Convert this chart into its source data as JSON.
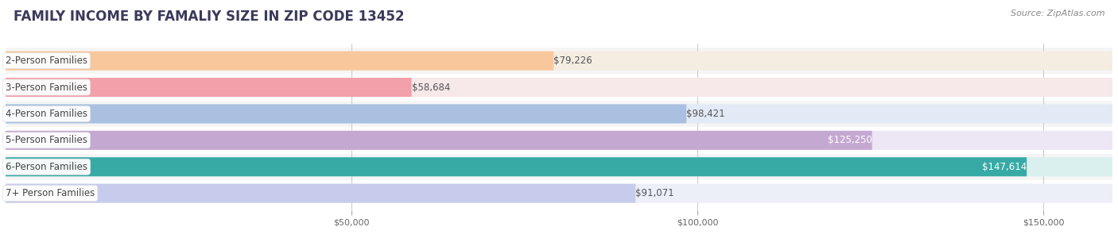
{
  "title": "FAMILY INCOME BY FAMALIY SIZE IN ZIP CODE 13452",
  "source": "Source: ZipAtlas.com",
  "categories": [
    "2-Person Families",
    "3-Person Families",
    "4-Person Families",
    "5-Person Families",
    "6-Person Families",
    "7+ Person Families"
  ],
  "values": [
    79226,
    58684,
    98421,
    125250,
    147614,
    91071
  ],
  "labels": [
    "$79,226",
    "$58,684",
    "$98,421",
    "$125,250",
    "$147,614",
    "$91,071"
  ],
  "bar_colors": [
    "#f8c89c",
    "#f2a0aa",
    "#a9c0e0",
    "#c5a8d2",
    "#38aaa6",
    "#c8ccec"
  ],
  "bar_bg_colors": [
    "#f5ede2",
    "#f7e8ea",
    "#e2eaf6",
    "#ede6f4",
    "#daf0ee",
    "#eceef8"
  ],
  "label_colors": [
    "#555555",
    "#555555",
    "#555555",
    "#ffffff",
    "#ffffff",
    "#555555"
  ],
  "xlim": [
    0,
    160000
  ],
  "x_max_display": 150000,
  "xticks": [
    50000,
    100000,
    150000
  ],
  "xtick_labels": [
    "$50,000",
    "$100,000",
    "$150,000"
  ],
  "title_fontsize": 12,
  "cat_fontsize": 8.5,
  "val_fontsize": 8.5,
  "tick_fontsize": 8,
  "source_fontsize": 8,
  "background_color": "#ffffff",
  "row_bg_colors": [
    "#f5f5f5",
    "#ffffff",
    "#f5f5f5",
    "#ffffff",
    "#f5f5f5",
    "#ffffff"
  ]
}
